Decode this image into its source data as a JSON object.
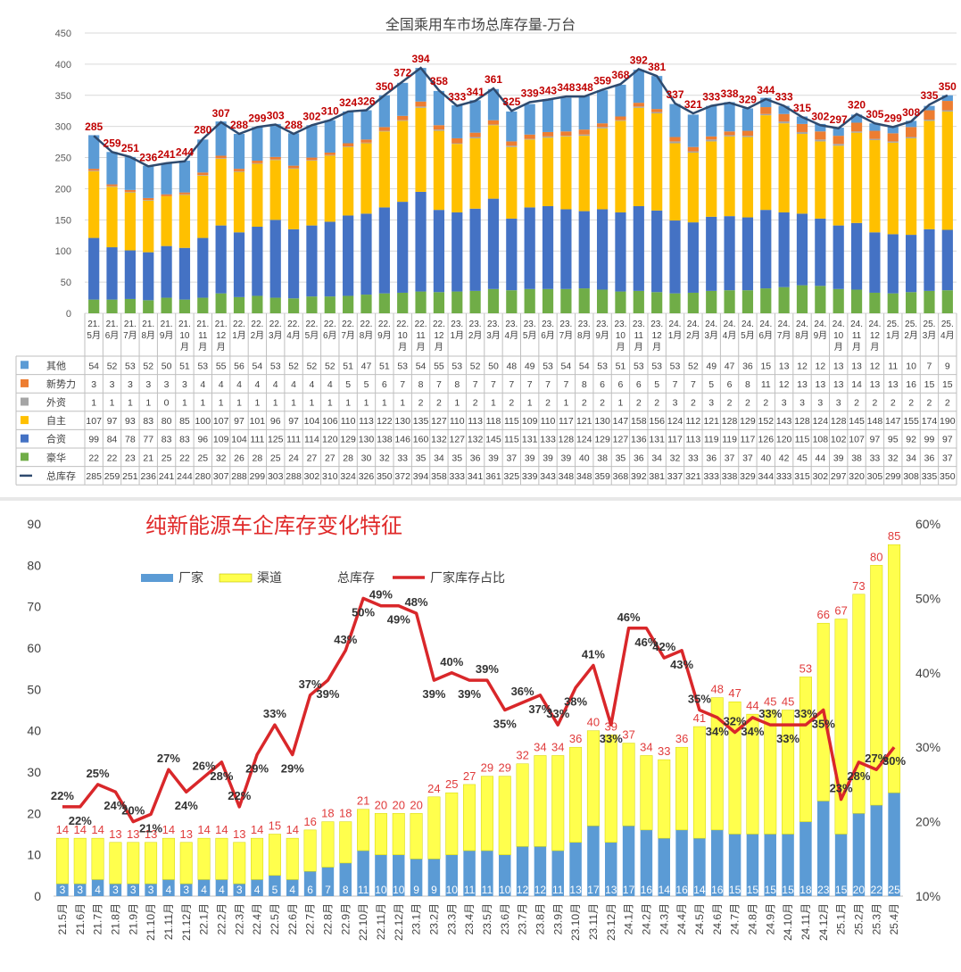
{
  "chart_data": [
    {
      "type": "bar",
      "title": "全国乘用车市场总库存量-万台",
      "ylim": [
        0,
        450
      ],
      "yticks": [
        0,
        50,
        100,
        150,
        200,
        250,
        300,
        350,
        400,
        450
      ],
      "grid": true,
      "categories": [
        "21.\n5月",
        "21.\n6月",
        "21.\n7月",
        "21.\n8月",
        "21.\n9月",
        "21.\n10\n月",
        "21.\n11\n月",
        "21.\n12\n月",
        "22.\n1月",
        "22.\n2月",
        "22.\n3月",
        "22.\n4月",
        "22.\n5月",
        "22.\n6月",
        "22.\n7月",
        "22.\n8月",
        "22.\n9月",
        "22.\n10\n月",
        "22.\n11\n月",
        "22.\n12\n月",
        "23.\n1月",
        "23.\n2月",
        "23.\n3月",
        "23.\n4月",
        "23.\n5月",
        "23.\n6月",
        "23.\n7月",
        "23.\n8月",
        "23.\n9月",
        "23.\n10\n月",
        "23.\n11\n月",
        "23.\n12\n月",
        "24.\n1月",
        "24.\n2月",
        "24.\n3月",
        "24.\n4月",
        "24.\n5月",
        "24.\n6月",
        "24.\n7月",
        "24.\n8月",
        "24.\n9月",
        "24.\n10\n月",
        "24.\n11\n月",
        "24.\n12\n月",
        "25.\n1月",
        "25.\n2月",
        "25.\n3月",
        "25.\n4月"
      ],
      "series": [
        {
          "name": "其他",
          "color": "#5b9bd5",
          "values": [
            54,
            52,
            53,
            52,
            50,
            51,
            53,
            55,
            56,
            54,
            53,
            52,
            52,
            52,
            51,
            47,
            51,
            53,
            54,
            55,
            53,
            52,
            50,
            48,
            49,
            53,
            54,
            54,
            53,
            51,
            53,
            53,
            53,
            52,
            49,
            47,
            36,
            15,
            13,
            12,
            12,
            13,
            13,
            12,
            11,
            10,
            7,
            9
          ]
        },
        {
          "name": "新势力",
          "color": "#ed7d31",
          "values": [
            3,
            3,
            3,
            3,
            3,
            3,
            4,
            4,
            4,
            4,
            4,
            4,
            4,
            4,
            5,
            5,
            6,
            7,
            8,
            7,
            8,
            7,
            7,
            7,
            7,
            7,
            7,
            8,
            6,
            6,
            6,
            5,
            7,
            7,
            5,
            6,
            8,
            11,
            12,
            13,
            13,
            13,
            14,
            13,
            13,
            16,
            15,
            15
          ]
        },
        {
          "name": "外资",
          "color": "#a5a5a5",
          "values": [
            1,
            1,
            1,
            1,
            0,
            1,
            1,
            1,
            1,
            1,
            1,
            1,
            1,
            1,
            1,
            1,
            1,
            1,
            2,
            2,
            1,
            2,
            1,
            2,
            1,
            2,
            1,
            2,
            2,
            1,
            2,
            2,
            3,
            2,
            3,
            2,
            2,
            2,
            3,
            3,
            3,
            3,
            2,
            2,
            2,
            2,
            2,
            2
          ]
        },
        {
          "name": "自主",
          "color": "#ffc000",
          "values": [
            107,
            97,
            93,
            83,
            80,
            85,
            100,
            107,
            97,
            101,
            96,
            97,
            104,
            106,
            110,
            113,
            122,
            130,
            135,
            127,
            110,
            113,
            118,
            115,
            109,
            110,
            117,
            121,
            130,
            147,
            158,
            156,
            124,
            112,
            121,
            128,
            129,
            152,
            143,
            128,
            124,
            128,
            145,
            148,
            147,
            155,
            174,
            190
          ]
        },
        {
          "name": "合资",
          "color": "#4472c4",
          "values": [
            99,
            84,
            78,
            77,
            83,
            83,
            96,
            109,
            104,
            111,
            125,
            111,
            114,
            120,
            129,
            130,
            138,
            146,
            160,
            132,
            127,
            132,
            145,
            115,
            131,
            133,
            128,
            124,
            129,
            127,
            136,
            131,
            117,
            113,
            119,
            119,
            117,
            126,
            120,
            115,
            108,
            102,
            107,
            97,
            95,
            92,
            99,
            97
          ]
        },
        {
          "name": "豪华",
          "color": "#70ad47",
          "values": [
            22,
            22,
            23,
            21,
            25,
            22,
            25,
            32,
            26,
            28,
            25,
            24,
            27,
            27,
            28,
            30,
            32,
            33,
            35,
            34,
            35,
            36,
            39,
            37,
            39,
            39,
            39,
            40,
            38,
            35,
            36,
            34,
            32,
            33,
            36,
            37,
            37,
            40,
            42,
            45,
            44,
            39,
            38,
            33,
            32,
            34,
            36,
            37
          ]
        },
        {
          "name": "总库存",
          "color": "#2e4a6e",
          "values": [
            285,
            259,
            251,
            236,
            241,
            244,
            280,
            307,
            288,
            299,
            303,
            288,
            302,
            310,
            324,
            326,
            350,
            372,
            394,
            358,
            333,
            341,
            361,
            325,
            339,
            343,
            348,
            348,
            359,
            368,
            392,
            381,
            337,
            321,
            333,
            338,
            329,
            344,
            333,
            315,
            302,
            297,
            320,
            305,
            299,
            308,
            335,
            350
          ]
        }
      ],
      "data_labels": [
        "285",
        "259",
        "251",
        "236",
        "241",
        "244",
        "280",
        "307",
        "288",
        "299",
        "303",
        "288",
        "302",
        "310",
        "324",
        "326",
        "350",
        "372",
        "394",
        "358",
        "333",
        "341",
        "361",
        "325",
        "339",
        "343",
        "348",
        "348",
        "359",
        "368",
        "392",
        "381",
        "337",
        "321",
        "333",
        "338",
        "329",
        "344",
        "333",
        "315",
        "302",
        "297",
        "320",
        "305",
        "299",
        "308",
        "335",
        "350"
      ]
    },
    {
      "type": "bar",
      "title": "纯新能源车企库存变化特征",
      "ylim": [
        0,
        90
      ],
      "yticks": [
        0,
        10,
        20,
        30,
        40,
        50,
        60,
        70,
        80,
        90
      ],
      "y2lim": [
        10,
        60
      ],
      "y2ticks": [
        "10%",
        "20%",
        "30%",
        "40%",
        "50%",
        "60%"
      ],
      "legend_labels": [
        "厂家",
        "渠道",
        "总库存",
        "厂家库存占比"
      ],
      "categories": [
        "21.5月",
        "21.6月",
        "21.7月",
        "21.8月",
        "21.9月",
        "21.10月",
        "21.11月",
        "21.12月",
        "22.1月",
        "22.2月",
        "22.3月",
        "22.4月",
        "22.5月",
        "22.6月",
        "22.7月",
        "22.8月",
        "22.9月",
        "22.10月",
        "22.11月",
        "22.12月",
        "23.1月",
        "23.2月",
        "23.3月",
        "23.4月",
        "23.5月",
        "23.6月",
        "23.7月",
        "23.8月",
        "23.9月",
        "23.10月",
        "23.11月",
        "23.12月",
        "24.1月",
        "24.2月",
        "24.3月",
        "24.4月",
        "24.5月",
        "24.6月",
        "24.7月",
        "24.8月",
        "24.9月",
        "24.10月",
        "24.11月",
        "24.12月",
        "25.1月",
        "25.2月",
        "25.3月",
        "25.4月"
      ],
      "series": [
        {
          "name": "厂家",
          "color": "#5b9bd5",
          "values": [
            3,
            3,
            4,
            3,
            3,
            3,
            4,
            3,
            4,
            4,
            3,
            4,
            5,
            4,
            6,
            7,
            8,
            11,
            10,
            10,
            9,
            9,
            10,
            11,
            11,
            10,
            12,
            12,
            11,
            13,
            17,
            13,
            17,
            16,
            14,
            16,
            14,
            16,
            15,
            15,
            15,
            15,
            18,
            23,
            15,
            20,
            22,
            25
          ]
        },
        {
          "name": "渠道",
          "color": "#ffff4d",
          "values": [
            11,
            11,
            10,
            10,
            10,
            10,
            10,
            10,
            10,
            10,
            10,
            10,
            10,
            10,
            10,
            11,
            10,
            10,
            10,
            10,
            11,
            15,
            15,
            16,
            18,
            19,
            20,
            22,
            23,
            23,
            23,
            26,
            20,
            18,
            19,
            20,
            27,
            32,
            32,
            29,
            30,
            30,
            35,
            43,
            52,
            53,
            58,
            60
          ]
        },
        {
          "name": "总库存",
          "values": [
            14,
            14,
            14,
            13,
            13,
            13,
            14,
            13,
            14,
            14,
            13,
            14,
            15,
            14,
            16,
            18,
            18,
            21,
            20,
            20,
            20,
            24,
            25,
            27,
            29,
            29,
            32,
            34,
            34,
            36,
            40,
            39,
            37,
            34,
            33,
            36,
            41,
            48,
            47,
            44,
            45,
            45,
            53,
            66,
            67,
            73,
            80,
            85
          ]
        },
        {
          "name": "厂家库存占比",
          "color": "#d9272a",
          "values": [
            22,
            22,
            25,
            24,
            20,
            21,
            27,
            24,
            26,
            28,
            22,
            29,
            33,
            29,
            37,
            39,
            43,
            50,
            49,
            49,
            48,
            39,
            40,
            39,
            39,
            35,
            36,
            37,
            33,
            38,
            41,
            33,
            46,
            46,
            42,
            43,
            35,
            34,
            32,
            34,
            33,
            33,
            33,
            35,
            23,
            28,
            27,
            30
          ]
        }
      ],
      "bar_labels": [
        "14",
        "14",
        "14",
        "13",
        "13",
        "13",
        "14",
        "13",
        "14",
        "14",
        "13",
        "14",
        "15",
        "14",
        "16",
        "18",
        "18",
        "21",
        "20",
        "20",
        "20",
        "24",
        "25",
        "27",
        "29",
        "29",
        "32",
        "34",
        "34",
        "36",
        "40",
        "39",
        "37",
        "34",
        "33",
        "36",
        "41",
        "48",
        "47",
        "44",
        "45",
        "45",
        "53",
        "66",
        "67",
        "73",
        "80",
        "85"
      ],
      "pct_labels": [
        "22%",
        "22%",
        "25%",
        "24%",
        "20%",
        "21%",
        "27%",
        "24%",
        "26%",
        "28%",
        "22%",
        "29%",
        "33%",
        "29%",
        "37%",
        "39%",
        "43%",
        "50%",
        "49%",
        "49%",
        "48%",
        "39%",
        "40%",
        "39%",
        "39%",
        "35%",
        "36%",
        "37%",
        "33%",
        "38%",
        "41%",
        "33%",
        "46%",
        "46%",
        "42%",
        "43%",
        "35%",
        "34%",
        "32%",
        "34%",
        "33%",
        "33%",
        "33%",
        "35%",
        "23%",
        "28%",
        "27%",
        "30%"
      ]
    }
  ]
}
